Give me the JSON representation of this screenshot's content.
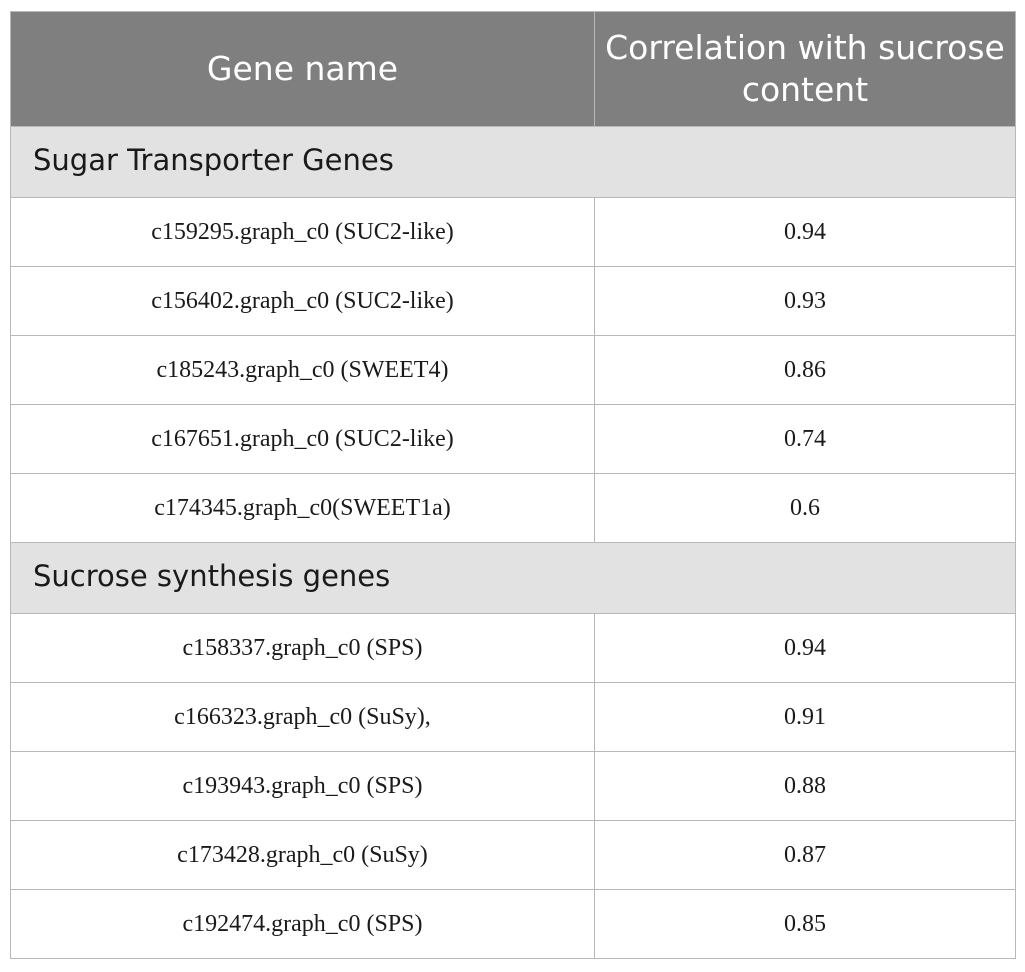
{
  "table": {
    "headers": [
      "Gene name",
      "Correlation with sucrose content"
    ],
    "sections": [
      {
        "title": "Sugar Transporter Genes",
        "rows": [
          {
            "gene": "c159295.graph_c0 (SUC2-like)",
            "correlation": "0.94"
          },
          {
            "gene": "c156402.graph_c0 (SUC2-like)",
            "correlation": "0.93"
          },
          {
            "gene": "c185243.graph_c0 (SWEET4)",
            "correlation": "0.86"
          },
          {
            "gene": "c167651.graph_c0 (SUC2-like)",
            "correlation": "0.74"
          },
          {
            "gene": "c174345.graph_c0(SWEET1a)",
            "correlation": "0.6"
          }
        ]
      },
      {
        "title": "Sucrose synthesis genes",
        "rows": [
          {
            "gene": "c158337.graph_c0 (SPS)",
            "correlation": "0.94"
          },
          {
            "gene": "c166323.graph_c0 (SuSy),",
            "correlation": "0.91"
          },
          {
            "gene": "c193943.graph_c0 (SPS)",
            "correlation": "0.88"
          },
          {
            "gene": "c173428.graph_c0 (SuSy)",
            "correlation": "0.87"
          },
          {
            "gene": "c192474.graph_c0 (SPS)",
            "correlation": "0.85"
          }
        ]
      }
    ]
  }
}
